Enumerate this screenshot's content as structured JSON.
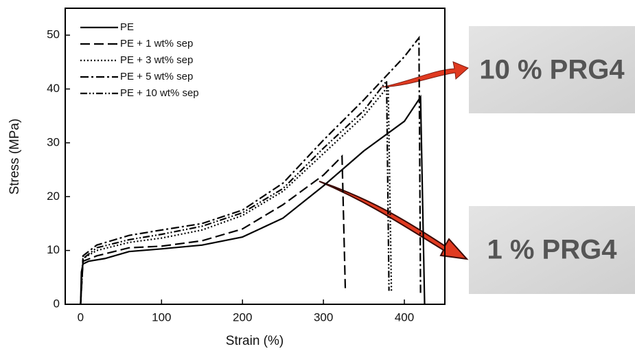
{
  "chart_data": {
    "type": "line",
    "xlabel": "Strain (%)",
    "ylabel": "Stress (MPa)",
    "xlim": [
      -19,
      450
    ],
    "ylim": [
      0,
      55
    ],
    "xticks": [
      0,
      100,
      200,
      300,
      400
    ],
    "yticks": [
      0,
      10,
      20,
      30,
      40,
      50
    ],
    "legend": "upper left",
    "series": [
      {
        "name": "PE",
        "color": "#000000",
        "linestyle": "solid",
        "x": [
          0,
          1,
          3,
          10,
          30,
          60,
          100,
          150,
          200,
          250,
          300,
          350,
          400,
          420,
          425
        ],
        "values": [
          0,
          6,
          7.5,
          8,
          8.5,
          9.8,
          10.3,
          11,
          12.5,
          16,
          22,
          28.5,
          34,
          38.5,
          0
        ]
      },
      {
        "name": "PE + 1 wt% sep",
        "color": "#000000",
        "linestyle": "dashed",
        "x": [
          0,
          3,
          20,
          60,
          100,
          150,
          200,
          250,
          300,
          323,
          327
        ],
        "values": [
          0,
          8,
          9,
          10.5,
          10.8,
          11.8,
          14,
          18.5,
          24,
          27.5,
          3
        ]
      },
      {
        "name": "PE + 3 wt% sep",
        "color": "#000000",
        "linestyle": "dotted",
        "x": [
          0,
          3,
          20,
          60,
          100,
          150,
          200,
          250,
          300,
          350,
          380,
          384
        ],
        "values": [
          0,
          8.5,
          10,
          11.5,
          12.3,
          13.8,
          16.5,
          21,
          28,
          35,
          40.5,
          2.5
        ]
      },
      {
        "name": "PE + 5 wt% sep",
        "color": "#000000",
        "linestyle": "dashdot",
        "x": [
          0,
          3,
          20,
          60,
          100,
          150,
          200,
          250,
          300,
          350,
          400,
          418,
          420
        ],
        "values": [
          0,
          9,
          11,
          12.8,
          13.8,
          15,
          17.5,
          22.5,
          30.5,
          38,
          46,
          49.5,
          2
        ]
      },
      {
        "name": "PE + 10 wt% sep",
        "color": "#000000",
        "linestyle": "dashdotdot",
        "x": [
          0,
          3,
          20,
          60,
          100,
          150,
          200,
          250,
          300,
          350,
          378,
          381
        ],
        "values": [
          0,
          8.5,
          10.5,
          12,
          13,
          14.5,
          17,
          21.5,
          29,
          36,
          41.5,
          2.5
        ]
      }
    ],
    "annotations": [
      "10 % PRG4",
      "1 % PRG4"
    ]
  }
}
